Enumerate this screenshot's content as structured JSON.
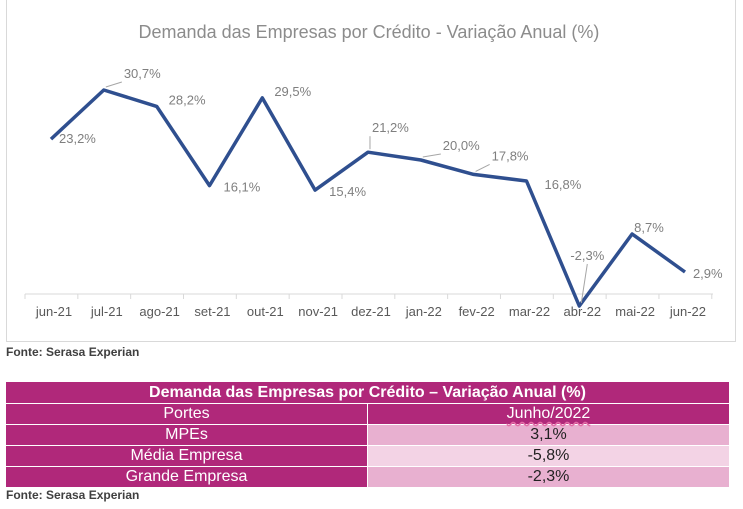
{
  "chart_data": {
    "type": "line",
    "title": "Demanda das Empresas por Crédito - Variação Anual (%)",
    "categories": [
      "jun-21",
      "jul-21",
      "ago-21",
      "set-21",
      "out-21",
      "nov-21",
      "dez-21",
      "jan-22",
      "fev-22",
      "mar-22",
      "abr-22",
      "mai-22",
      "jun-22"
    ],
    "series": [
      {
        "values": [
          23.2,
          30.7,
          28.2,
          16.1,
          29.5,
          15.4,
          21.2,
          20.0,
          17.8,
          16.8,
          -2.3,
          8.7,
          2.9
        ]
      }
    ],
    "labels": [
      "23,2%",
      "30,7%",
      "28,2%",
      "16,1%",
      "29,5%",
      "15,4%",
      "21,2%",
      "20,0%",
      "17,8%",
      "16,8%",
      "-2,3%",
      "8,7%",
      "2,9%"
    ],
    "ylim": [
      -2.3,
      30.7
    ],
    "grid": false,
    "colors": {
      "line": "#2f4f8f",
      "label": "#7f7f7f",
      "title": "#8c8c8c",
      "axis": "#d9d9d9"
    }
  },
  "chart_source": "Fonte: Serasa Experian",
  "table": {
    "title": "Demanda das Empresas por Crédito – Variação Anual (%)",
    "header": {
      "col1": "Portes",
      "col2": "Junho/2022"
    },
    "rows": [
      {
        "label": "MPEs",
        "value": "3,1%"
      },
      {
        "label": "Média Empresa",
        "value": "-5,8%"
      },
      {
        "label": "Grande Empresa",
        "value": "-2,3%"
      }
    ],
    "colors": {
      "header": "#b0287a",
      "row_a": "#e8b0d0",
      "row_b": "#f3d3e5"
    }
  },
  "table_source": "Fonte: Serasa Experian"
}
